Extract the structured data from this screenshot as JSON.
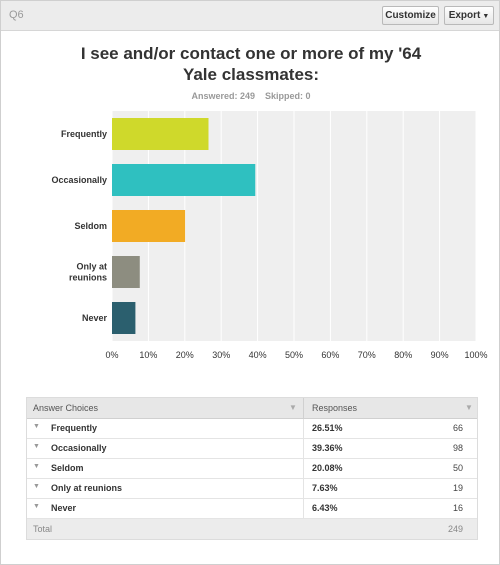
{
  "header": {
    "question_label": "Q6",
    "customize_label": "Customize",
    "export_label": "Export"
  },
  "title_line1": "I see and/or contact one or more of my '64",
  "title_line2": "Yale classmates:",
  "meta": {
    "answered": "Answered: 249",
    "skipped": "Skipped: 0"
  },
  "chart_data": {
    "type": "bar",
    "orientation": "horizontal",
    "categories": [
      "Frequently",
      "Occasionally",
      "Seldom",
      "Only at reunions",
      "Never"
    ],
    "category_label_lines": [
      [
        "Frequently"
      ],
      [
        "Occasionally"
      ],
      [
        "Seldom"
      ],
      [
        "Only at",
        "reunions"
      ],
      [
        "Never"
      ]
    ],
    "values": [
      26.51,
      39.36,
      20.08,
      7.63,
      6.43
    ],
    "colors": [
      "#cfd92b",
      "#2fc0c0",
      "#f2ab24",
      "#8d8d80",
      "#2b5f6e"
    ],
    "xlim": [
      0,
      100
    ],
    "xticks": [
      "0%",
      "10%",
      "20%",
      "30%",
      "40%",
      "50%",
      "60%",
      "70%",
      "80%",
      "90%",
      "100%"
    ],
    "grid": true,
    "background": "#efefef"
  },
  "table": {
    "header_choices": "Answer Choices",
    "header_responses": "Responses",
    "rows": [
      {
        "label": "Frequently",
        "percent": "26.51%",
        "count": "66"
      },
      {
        "label": "Occasionally",
        "percent": "39.36%",
        "count": "98"
      },
      {
        "label": "Seldom",
        "percent": "20.08%",
        "count": "50"
      },
      {
        "label": "Only at reunions",
        "percent": "7.63%",
        "count": "19"
      },
      {
        "label": "Never",
        "percent": "6.43%",
        "count": "16"
      }
    ],
    "total_label": "Total",
    "total_count": "249"
  }
}
